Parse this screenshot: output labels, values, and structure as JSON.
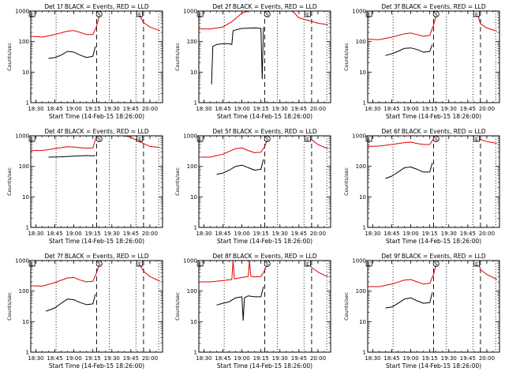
{
  "chart_data": {
    "type": "line",
    "y_scale": "log",
    "ylim": [
      1,
      1000
    ],
    "yticks": [
      1,
      10,
      100,
      1000
    ],
    "ytick_labels": [
      "1",
      "10",
      "100",
      "1000"
    ],
    "ylabel": "Counts/sec",
    "xlabel": "Start Time (14-Feb-15 18:26:00)",
    "xlim": [
      "18:26",
      "20:10"
    ],
    "xticks": [
      "18:30",
      "18:45",
      "19:00",
      "19:15",
      "19:30",
      "19:45",
      "20:00"
    ],
    "series_names": [
      "Events",
      "LLD"
    ],
    "series_colors": {
      "Events": "#000000",
      "LLD": "#e00000"
    },
    "vlines": [
      {
        "time": "18:46",
        "style": "dotted"
      },
      {
        "time": "19:18",
        "style": "dashed"
      },
      {
        "time": "19:28",
        "style": "dotted"
      },
      {
        "time": "19:49",
        "style": "dotted"
      },
      {
        "time": "19:55",
        "style": "dashed"
      },
      {
        "time": "20:07",
        "style": "dotted"
      }
    ],
    "markers": [
      {
        "label": "E",
        "time": "18:27"
      },
      {
        "label": "S",
        "time": "19:20"
      },
      {
        "label": "E",
        "time": "19:52"
      }
    ],
    "panels": [
      {
        "title": "Det 1f BLACK = Events, RED = LLD",
        "series": [
          {
            "name": "Events",
            "x": [
              "18:40",
              "18:45",
              "18:50",
              "18:55",
              "19:00",
              "19:05",
              "19:10",
              "19:15",
              "19:17"
            ],
            "y": [
              28,
              30,
              36,
              48,
              45,
              36,
              30,
              33,
              70
            ]
          },
          {
            "name": "LLD",
            "x": [
              "18:26",
              "18:35",
              "18:45",
              "18:55",
              "19:00",
              "19:05",
              "19:10",
              "19:15",
              "19:18",
              "19:21",
              "19:50",
              "19:55",
              "20:00",
              "20:05",
              "20:08"
            ],
            "y": [
              150,
              140,
              170,
              220,
              230,
              200,
              170,
              170,
              320,
              1000,
              1000,
              420,
              300,
              250,
              230
            ]
          }
        ]
      },
      {
        "title": "Det 2f BLACK = Events, RED = LLD",
        "series": [
          {
            "name": "Events",
            "x": [
              "18:36",
              "18:37",
              "18:40",
              "18:45",
              "18:50",
              "18:52",
              "18:53",
              "19:00",
              "19:10",
              "19:15",
              "19:16",
              "19:17"
            ],
            "y": [
              4,
              70,
              80,
              85,
              85,
              80,
              230,
              270,
              280,
              270,
              6,
              300
            ]
          },
          {
            "name": "LLD",
            "x": [
              "18:26",
              "18:35",
              "18:45",
              "18:52",
              "19:00",
              "19:05",
              "19:10",
              "19:15",
              "19:18",
              "19:20",
              "19:25",
              "19:30",
              "19:35",
              "19:40",
              "19:45",
              "20:00",
              "20:08"
            ],
            "y": [
              260,
              260,
              300,
              450,
              850,
              1000,
              1100,
              1050,
              1400,
              1000,
              1000,
              1000,
              1000,
              1000,
              600,
              400,
              360
            ]
          }
        ]
      },
      {
        "title": "Det 3f BLACK = Events, RED = LLD",
        "series": [
          {
            "name": "Events",
            "x": [
              "18:40",
              "18:45",
              "18:50",
              "18:55",
              "19:00",
              "19:05",
              "19:10",
              "19:15",
              "19:17"
            ],
            "y": [
              35,
              40,
              48,
              60,
              62,
              55,
              45,
              48,
              80
            ]
          },
          {
            "name": "LLD",
            "x": [
              "18:26",
              "18:35",
              "18:45",
              "18:55",
              "19:00",
              "19:05",
              "19:10",
              "19:15",
              "19:18",
              "19:21",
              "19:52",
              "19:55",
              "20:00",
              "20:05",
              "20:08"
            ],
            "y": [
              120,
              115,
              140,
              180,
              190,
              170,
              150,
              160,
              350,
              1000,
              1000,
              380,
              280,
              240,
              220
            ]
          }
        ]
      },
      {
        "title": "Det 4f BLACK = Events, RED = LLD",
        "series": [
          {
            "name": "Events",
            "x": [
              "18:40",
              "18:50",
              "19:00",
              "19:10",
              "19:15",
              "19:17"
            ],
            "y": [
              200,
              205,
              215,
              225,
              220,
              230
            ]
          },
          {
            "name": "LLD",
            "x": [
              "18:26",
              "18:35",
              "18:45",
              "18:55",
              "19:00",
              "19:10",
              "19:15",
              "19:18",
              "19:20",
              "19:25",
              "19:30",
              "19:35",
              "19:40",
              "19:45",
              "19:50",
              "19:55",
              "20:00",
              "20:05",
              "20:08"
            ],
            "y": [
              330,
              330,
              380,
              440,
              430,
              390,
              400,
              1000,
              1000,
              1000,
              1000,
              1000,
              1000,
              900,
              700,
              560,
              450,
              430,
              420
            ]
          }
        ]
      },
      {
        "title": "Det 5f BLACK = Events, RED = LLD",
        "series": [
          {
            "name": "Events",
            "x": [
              "18:40",
              "18:45",
              "18:50",
              "18:55",
              "19:00",
              "19:05",
              "19:10",
              "19:15",
              "19:17"
            ],
            "y": [
              55,
              60,
              75,
              100,
              110,
              90,
              75,
              80,
              170
            ]
          },
          {
            "name": "LLD",
            "x": [
              "18:26",
              "18:35",
              "18:45",
              "18:55",
              "19:00",
              "19:05",
              "19:10",
              "19:15",
              "19:18",
              "19:21",
              "19:49",
              "19:55",
              "20:00",
              "20:05",
              "20:08"
            ],
            "y": [
              200,
              200,
              250,
              380,
              400,
              330,
              280,
              290,
              450,
              1000,
              1000,
              750,
              520,
              420,
              380
            ]
          }
        ]
      },
      {
        "title": "Det 6f BLACK = Events, RED = LLD",
        "series": [
          {
            "name": "Events",
            "x": [
              "18:40",
              "18:45",
              "18:50",
              "18:55",
              "19:00",
              "19:05",
              "19:10",
              "19:15",
              "19:17"
            ],
            "y": [
              40,
              48,
              65,
              90,
              95,
              80,
              65,
              65,
              130
            ]
          },
          {
            "name": "LLD",
            "x": [
              "18:26",
              "18:35",
              "18:45",
              "18:55",
              "19:00",
              "19:05",
              "19:10",
              "19:15",
              "19:18",
              "19:21",
              "19:52",
              "19:55",
              "20:00",
              "20:05",
              "20:08"
            ],
            "y": [
              450,
              460,
              520,
              600,
              620,
              560,
              520,
              520,
              800,
              1000,
              1000,
              750,
              650,
              600,
              560
            ]
          }
        ]
      },
      {
        "title": "Det 7f BLACK = Events, RED = LLD",
        "series": [
          {
            "name": "Events",
            "x": [
              "18:38",
              "18:45",
              "18:50",
              "18:55",
              "19:00",
              "19:05",
              "19:10",
              "19:15",
              "19:17"
            ],
            "y": [
              22,
              28,
              40,
              55,
              52,
              42,
              36,
              38,
              80
            ]
          },
          {
            "name": "LLD",
            "x": [
              "18:26",
              "18:35",
              "18:45",
              "18:55",
              "19:00",
              "19:05",
              "19:10",
              "19:15",
              "19:18",
              "19:21",
              "19:50",
              "19:55",
              "20:00",
              "20:05",
              "20:08"
            ],
            "y": [
              150,
              145,
              190,
              270,
              280,
              230,
              200,
              210,
              400,
              1000,
              1000,
              450,
              300,
              240,
              210
            ]
          }
        ]
      },
      {
        "title": "Det 8f BLACK = Events, RED = LLD",
        "series": [
          {
            "name": "Events",
            "x": [
              "18:40",
              "18:45",
              "18:50",
              "18:55",
              "19:00",
              "19:01",
              "19:02",
              "19:05",
              "19:10",
              "19:15",
              "19:17"
            ],
            "y": [
              35,
              40,
              45,
              60,
              65,
              11,
              60,
              70,
              65,
              65,
              140
            ]
          },
          {
            "name": "LLD",
            "x": [
              "18:26",
              "18:35",
              "18:45",
              "18:52",
              "18:53",
              "18:54",
              "18:56",
              "19:00",
              "19:05",
              "19:06",
              "19:07",
              "19:10",
              "19:15",
              "19:18",
              "19:21",
              "19:51",
              "19:55",
              "20:00",
              "20:05",
              "20:08"
            ],
            "y": [
              200,
              200,
              220,
              240,
              1000,
              250,
              260,
              280,
              300,
              1000,
              310,
              290,
              300,
              480,
              1000,
              1000,
              600,
              420,
              330,
              300
            ]
          }
        ]
      },
      {
        "title": "Det 9f BLACK = Events, RED = LLD",
        "series": [
          {
            "name": "Events",
            "x": [
              "18:40",
              "18:45",
              "18:50",
              "18:55",
              "19:00",
              "19:05",
              "19:10",
              "19:15",
              "19:17"
            ],
            "y": [
              28,
              30,
              40,
              55,
              60,
              48,
              40,
              42,
              90
            ]
          },
          {
            "name": "LLD",
            "x": [
              "18:26",
              "18:35",
              "18:45",
              "18:55",
              "19:00",
              "19:05",
              "19:10",
              "19:15",
              "19:18",
              "19:21",
              "19:53",
              "19:55",
              "20:00",
              "20:05",
              "20:08"
            ],
            "y": [
              140,
              140,
              170,
              230,
              240,
              200,
              170,
              180,
              360,
              1000,
              1000,
              500,
              350,
              280,
              240
            ]
          }
        ]
      }
    ]
  }
}
